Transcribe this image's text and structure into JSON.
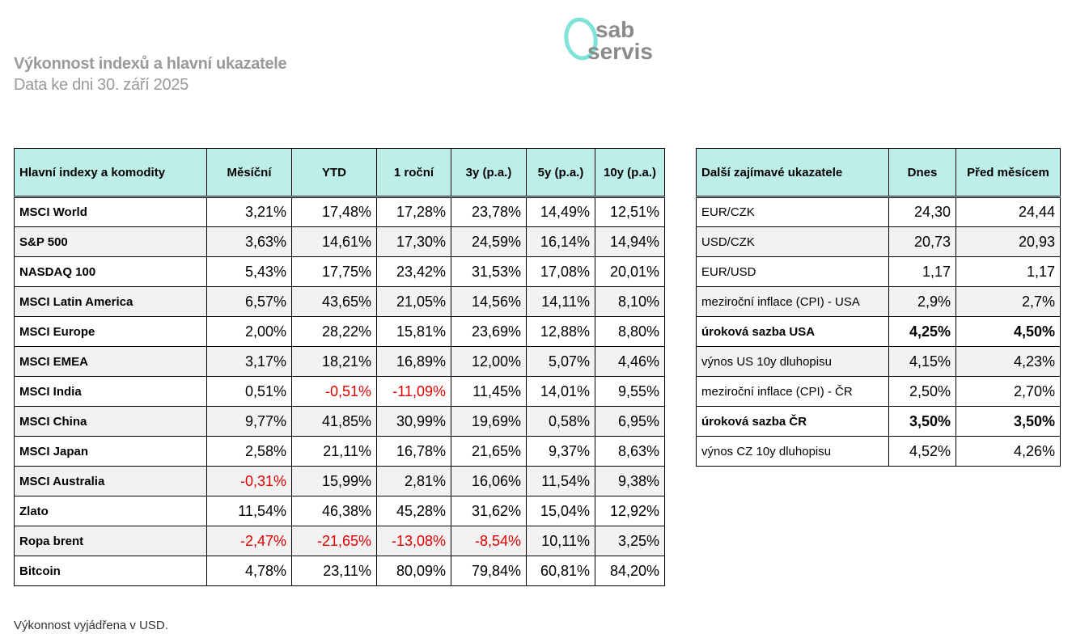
{
  "header": {
    "title": "Výkonnost indexů a hlavní ukazatele",
    "subtitle": "Data ke dni 30. září 2025",
    "logo_text": "osab servis",
    "logo_color": "#7fe3da"
  },
  "indices": {
    "columns": [
      "Hlavní indexy a komodity",
      "Měsíční",
      "YTD",
      "1 roční",
      "3y (p.a.)",
      "5y (p.a.)",
      "10y (p.a.)"
    ],
    "rows": [
      {
        "name": "MSCI World",
        "values": [
          "3,21%",
          "17,48%",
          "17,28%",
          "23,78%",
          "14,49%",
          "12,51%"
        ]
      },
      {
        "name": "S&P 500",
        "values": [
          "3,63%",
          "14,61%",
          "17,30%",
          "24,59%",
          "16,14%",
          "14,94%"
        ]
      },
      {
        "name": "NASDAQ 100",
        "values": [
          "5,43%",
          "17,75%",
          "23,42%",
          "31,53%",
          "17,08%",
          "20,01%"
        ]
      },
      {
        "name": "MSCI Latin America",
        "values": [
          "6,57%",
          "43,65%",
          "21,05%",
          "14,56%",
          "14,11%",
          "8,10%"
        ]
      },
      {
        "name": "MSCI Europe",
        "values": [
          "2,00%",
          "28,22%",
          "15,81%",
          "23,69%",
          "12,88%",
          "8,80%"
        ]
      },
      {
        "name": "MSCI EMEA",
        "values": [
          "3,17%",
          "18,21%",
          "16,89%",
          "12,00%",
          "5,07%",
          "4,46%"
        ]
      },
      {
        "name": "MSCI India",
        "values": [
          "0,51%",
          "-0,51%",
          "-11,09%",
          "11,45%",
          "14,01%",
          "9,55%"
        ]
      },
      {
        "name": "MSCI China",
        "values": [
          "9,77%",
          "41,85%",
          "30,99%",
          "19,69%",
          "0,58%",
          "6,95%"
        ]
      },
      {
        "name": "MSCI Japan",
        "values": [
          "2,58%",
          "21,11%",
          "16,78%",
          "21,65%",
          "9,37%",
          "8,63%"
        ]
      },
      {
        "name": "MSCI Australia",
        "values": [
          "-0,31%",
          "15,99%",
          "2,81%",
          "16,06%",
          "11,54%",
          "9,38%"
        ]
      },
      {
        "name": "Zlato",
        "values": [
          "11,54%",
          "46,38%",
          "45,28%",
          "31,62%",
          "15,04%",
          "12,92%"
        ]
      },
      {
        "name": "Ropa brent",
        "values": [
          "-2,47%",
          "-21,65%",
          "-13,08%",
          "-8,54%",
          "10,11%",
          "3,25%"
        ]
      },
      {
        "name": "Bitcoin",
        "values": [
          "4,78%",
          "23,11%",
          "80,09%",
          "79,84%",
          "60,81%",
          "84,20%"
        ]
      }
    ]
  },
  "indicators": {
    "columns": [
      "Další zajímavé ukazatele",
      "Dnes",
      "Před měsícem"
    ],
    "rows": [
      {
        "name": "EUR/CZK",
        "values": [
          "24,30",
          "24,44"
        ],
        "bold": false,
        "shaded": false
      },
      {
        "name": "USD/CZK",
        "values": [
          "20,73",
          "20,93"
        ],
        "bold": false,
        "shaded": true
      },
      {
        "name": "EUR/USD",
        "values": [
          "1,17",
          "1,17"
        ],
        "bold": false,
        "shaded": false
      },
      {
        "name": "meziroční inflace (CPI) - USA",
        "values": [
          "2,9%",
          "2,7%"
        ],
        "bold": false,
        "shaded": true
      },
      {
        "name": "úroková sazba USA",
        "values": [
          "4,25%",
          "4,50%"
        ],
        "bold": true,
        "shaded": false
      },
      {
        "name": "výnos US 10y dluhopisu",
        "values": [
          "4,15%",
          "4,23%"
        ],
        "bold": false,
        "shaded": true
      },
      {
        "name": "meziroční inflace (CPI) - ČR",
        "values": [
          "2,50%",
          "2,70%"
        ],
        "bold": false,
        "shaded": false
      },
      {
        "name": "úroková sazba ČR",
        "values": [
          "3,50%",
          "3,50%"
        ],
        "bold": true,
        "shaded": false
      },
      {
        "name": "výnos CZ 10y dluhopisu",
        "values": [
          "4,52%",
          "4,26%"
        ],
        "bold": false,
        "shaded": false
      }
    ]
  },
  "colors": {
    "header_bg": "#bdeeea",
    "negative": "#e00000",
    "title": "#9a9a9a"
  },
  "footer": "Výkonnost vyjádřena v USD."
}
